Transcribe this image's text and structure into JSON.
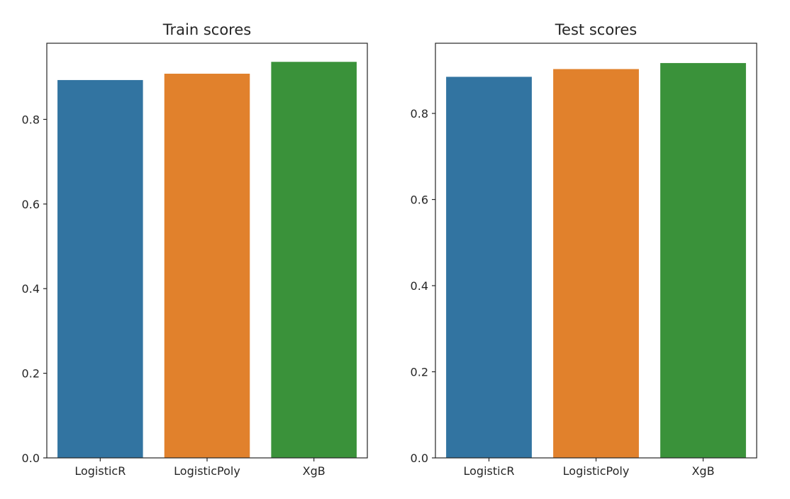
{
  "chart_data": [
    {
      "type": "bar",
      "title": "Train scores",
      "categories": [
        "LogisticR",
        "LogisticPoly",
        "XgB"
      ],
      "values": [
        0.893,
        0.908,
        0.936
      ],
      "colors": [
        "#3274a1",
        "#e1812c",
        "#3a923a"
      ],
      "ylim": [
        0,
        0.98
      ],
      "yticks": [
        0.0,
        0.2,
        0.4,
        0.6,
        0.8
      ],
      "ytick_labels": [
        "0.0",
        "0.2",
        "0.4",
        "0.6",
        "0.8"
      ],
      "xlabel": "",
      "ylabel": "",
      "grid": false
    },
    {
      "type": "bar",
      "title": "Test scores",
      "categories": [
        "LogisticR",
        "LogisticPoly",
        "XgB"
      ],
      "values": [
        0.885,
        0.903,
        0.917
      ],
      "colors": [
        "#3274a1",
        "#e1812c",
        "#3a923a"
      ],
      "ylim": [
        0,
        0.963
      ],
      "yticks": [
        0.0,
        0.2,
        0.4,
        0.6,
        0.8
      ],
      "ytick_labels": [
        "0.0",
        "0.2",
        "0.4",
        "0.6",
        "0.8"
      ],
      "xlabel": "",
      "ylabel": "",
      "grid": false
    }
  ]
}
